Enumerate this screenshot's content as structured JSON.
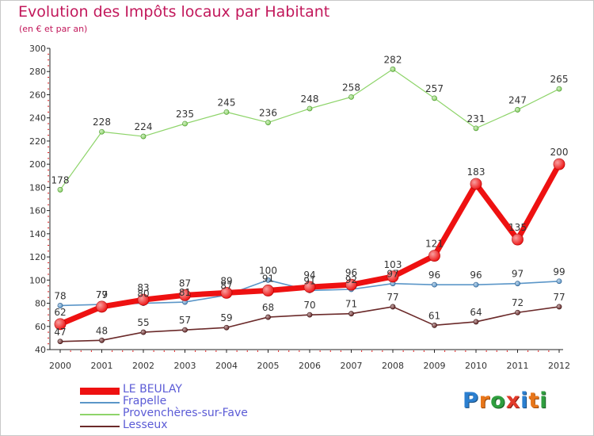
{
  "title": "Evolution des Impôts locaux par Habitant",
  "subtitle": "(en € et par an)",
  "logo_text": "Proxiti",
  "chart_data": {
    "type": "line",
    "x": [
      "2000",
      "2001",
      "2002",
      "2003",
      "2004",
      "2005",
      "2006",
      "2007",
      "2008",
      "2009",
      "2010",
      "2011",
      "2012"
    ],
    "ylim": [
      40,
      300
    ],
    "yticks": [
      40,
      60,
      80,
      100,
      120,
      140,
      160,
      180,
      200,
      220,
      240,
      260,
      280,
      300
    ],
    "grid": false,
    "legend_position": "bottom-left",
    "series": [
      {
        "name": "LE BEULAY",
        "color": "#ee1111",
        "values": [
          62,
          77,
          83,
          87,
          89,
          91,
          94,
          96,
          103,
          121,
          183,
          135,
          200
        ]
      },
      {
        "name": "Frapelle",
        "color": "#5b96c8",
        "values": [
          78,
          79,
          80,
          81,
          87,
          100,
          91,
          92,
          97,
          96,
          96,
          97,
          99
        ]
      },
      {
        "name": "Provenchères-sur-Fave",
        "color": "#8ed46a",
        "values": [
          178,
          228,
          224,
          235,
          245,
          236,
          248,
          258,
          282,
          257,
          231,
          247,
          265
        ]
      },
      {
        "name": "Lesseux",
        "color": "#6b2a2a",
        "values": [
          47,
          48,
          55,
          57,
          59,
          68,
          70,
          71,
          77,
          61,
          64,
          72,
          77
        ]
      }
    ]
  }
}
